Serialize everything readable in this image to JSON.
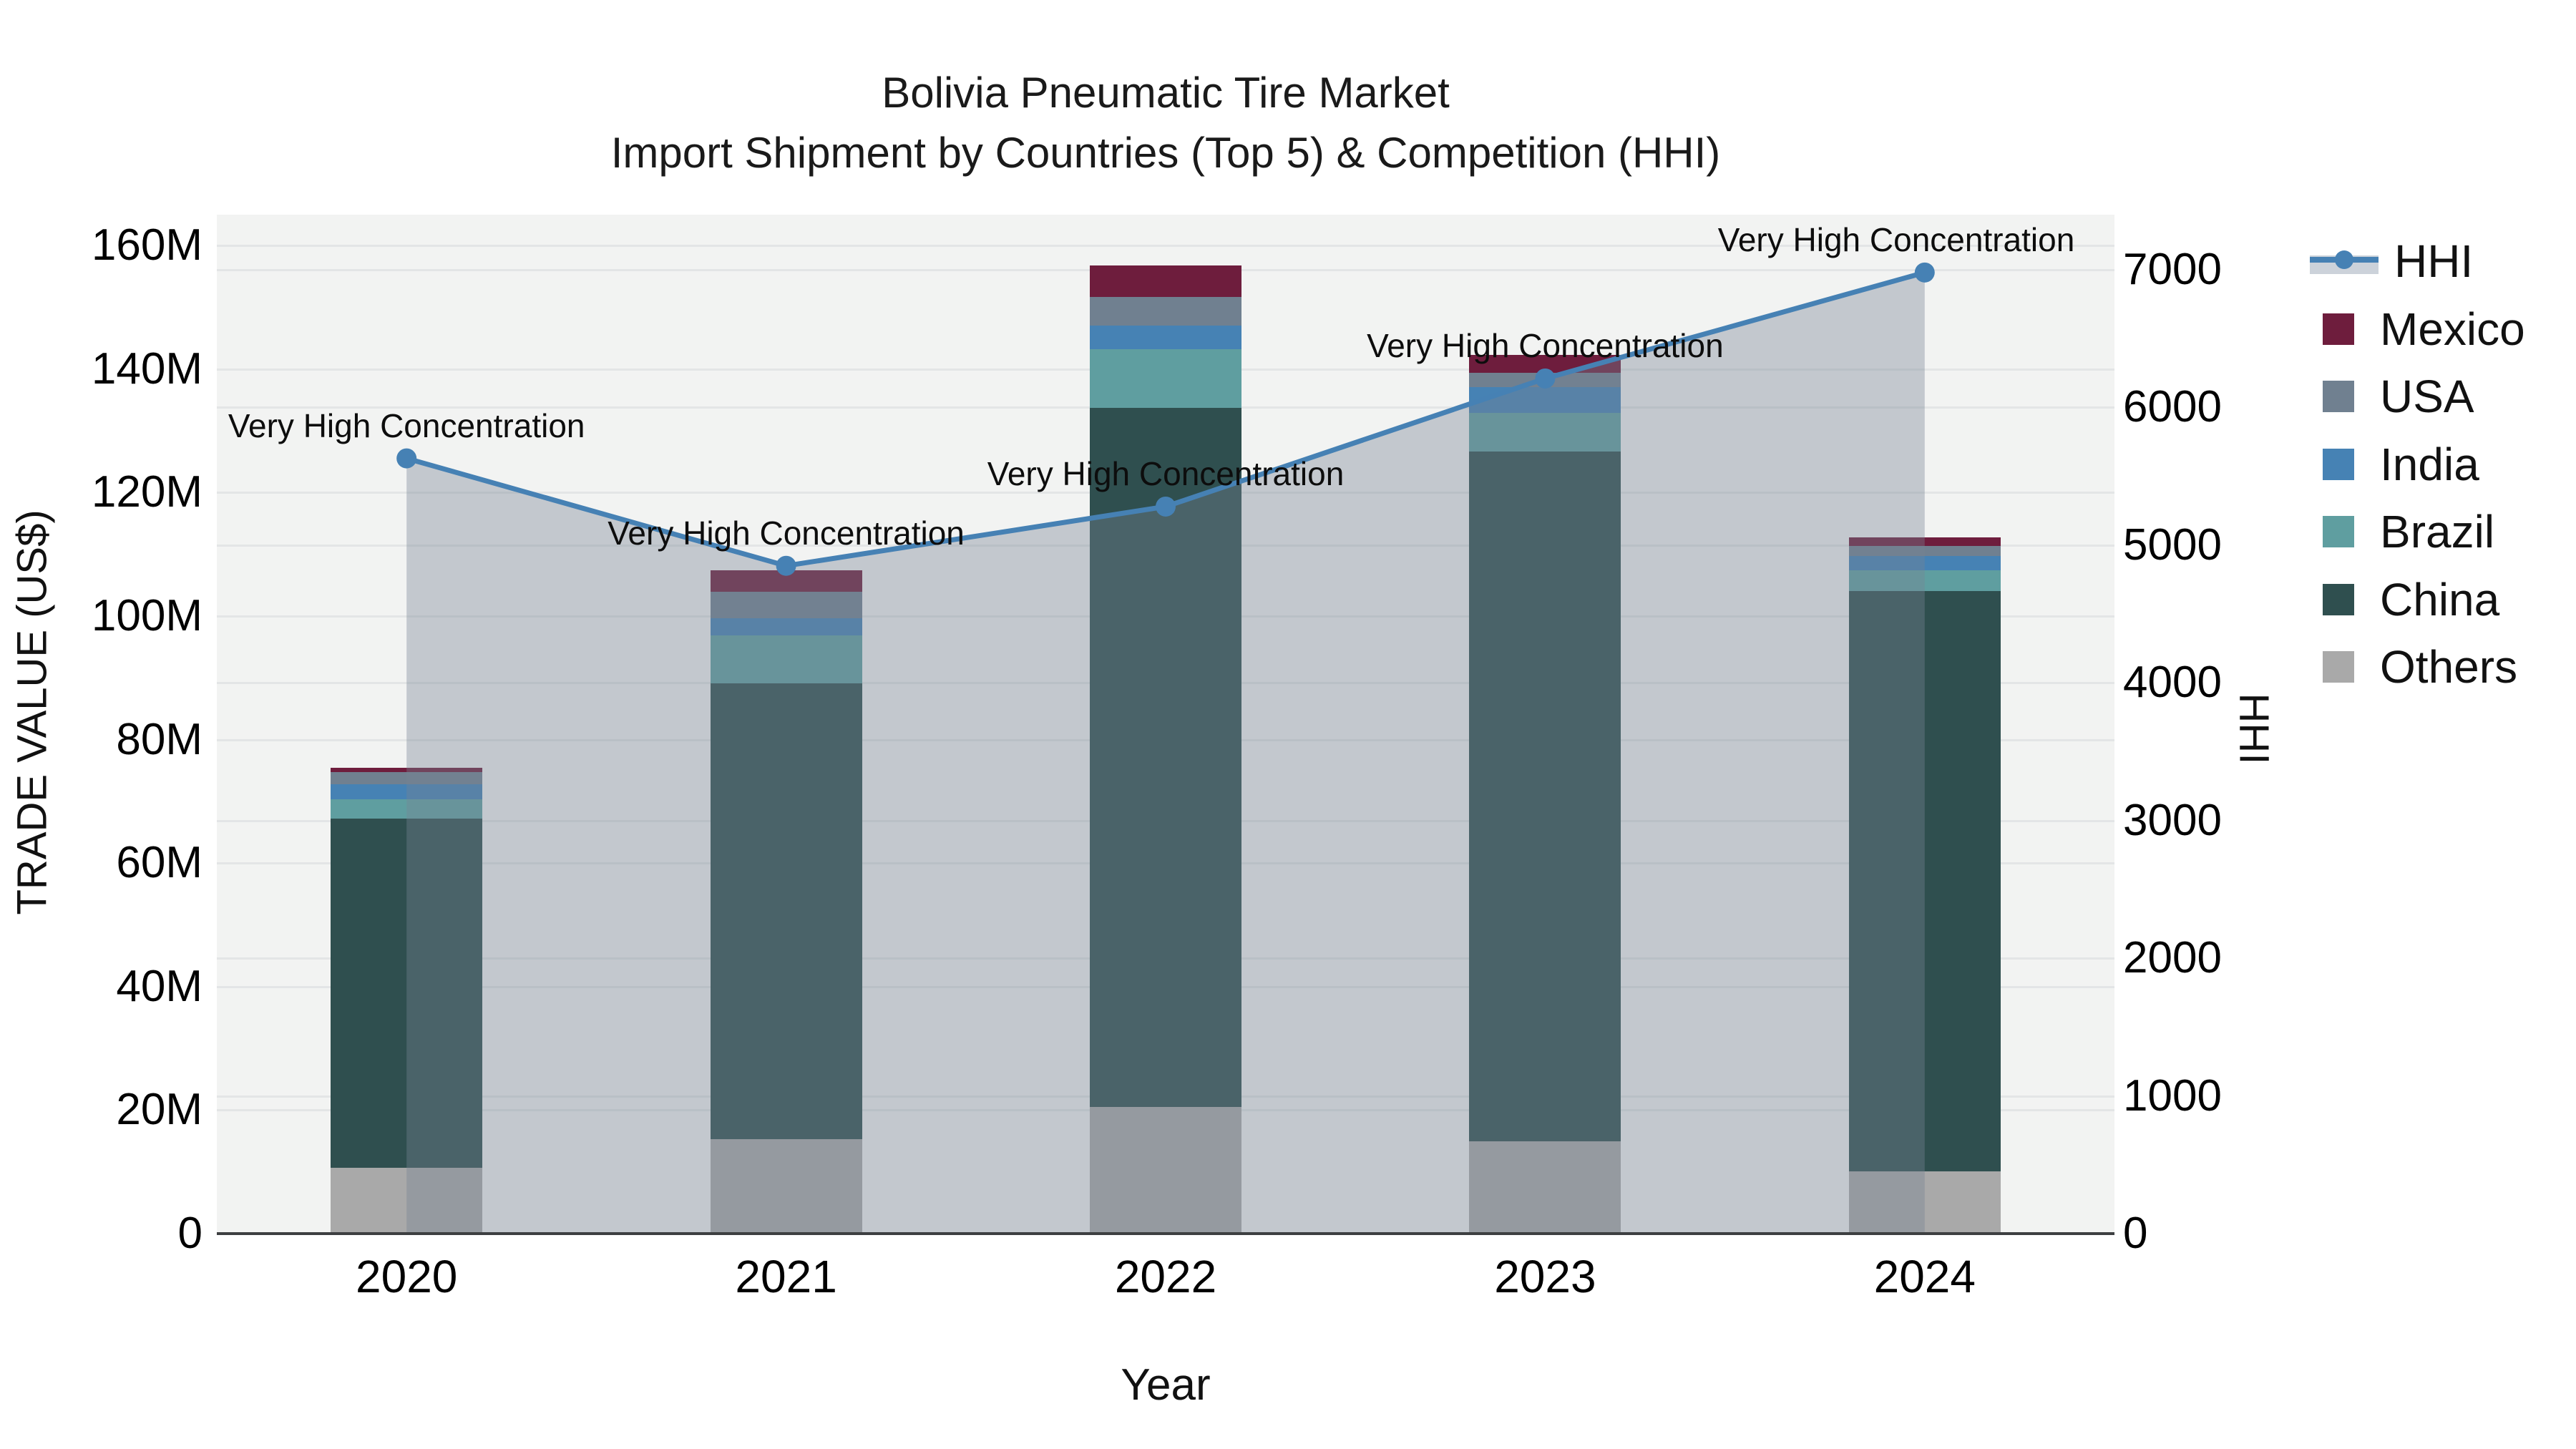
{
  "title": {
    "line1": "Bolivia Pneumatic Tire Market",
    "line2": "Import Shipment by Countries (Top 5) & Competition (HHI)"
  },
  "chart_data": {
    "type": "stacked-bar with line (dual y-axis)",
    "categories": [
      "2020",
      "2021",
      "2022",
      "2023",
      "2024"
    ],
    "bar_unit": "million US$",
    "bar_series": [
      {
        "name": "Others",
        "color": "#a9a9a9",
        "values": [
          10.7,
          15.3,
          20.5,
          15.0,
          10.1
        ]
      },
      {
        "name": "China",
        "color": "#2f4f4f",
        "values": [
          56.5,
          73.8,
          113.2,
          111.7,
          94.0
        ]
      },
      {
        "name": "Brazil",
        "color": "#5f9ea0",
        "values": [
          3.1,
          7.8,
          9.5,
          6.2,
          3.3
        ]
      },
      {
        "name": "India",
        "color": "#4682b4",
        "values": [
          2.5,
          2.8,
          3.8,
          4.2,
          2.3
        ]
      },
      {
        "name": "USA",
        "color": "#708090",
        "values": [
          1.9,
          4.2,
          4.7,
          2.3,
          1.6
        ]
      },
      {
        "name": "Mexico",
        "color": "#6e1d3d",
        "values": [
          0.7,
          3.5,
          5.1,
          2.9,
          1.4
        ]
      }
    ],
    "bar_totals": [
      75.4,
      107.4,
      156.8,
      142.3,
      112.7
    ],
    "line_series": {
      "name": "HHI",
      "axis": "right",
      "color": "#4681b4",
      "fill_color": "rgba(118,132,146,0.38)",
      "values": [
        5630,
        4850,
        5280,
        6210,
        6980
      ]
    },
    "annotations": [
      {
        "year": "2020",
        "text": "Very High Concentration"
      },
      {
        "year": "2021",
        "text": "Very High Concentration"
      },
      {
        "year": "2022",
        "text": "Very High Concentration"
      },
      {
        "year": "2023",
        "text": "Very High Concentration"
      },
      {
        "year": "2024",
        "text": "Very High Concentration"
      }
    ],
    "xlabel": "Year",
    "ylabel_left": "TRADE VALUE (US$)",
    "ylabel_right": "HHI",
    "y_left": {
      "tick_labels": [
        "0",
        "20M",
        "40M",
        "60M",
        "80M",
        "100M",
        "120M",
        "140M",
        "160M"
      ],
      "tick_values": [
        0,
        20,
        40,
        60,
        80,
        100,
        120,
        140,
        160
      ],
      "range": [
        0,
        165
      ],
      "grid": true
    },
    "y_right": {
      "tick_labels": [
        "0",
        "1000",
        "2000",
        "3000",
        "4000",
        "5000",
        "6000",
        "7000"
      ],
      "tick_values": [
        0,
        1000,
        2000,
        3000,
        4000,
        5000,
        6000,
        7000
      ],
      "range": [
        0,
        7400
      ],
      "grid": true
    },
    "legend": {
      "position": "right",
      "entries": [
        "HHI",
        "Mexico",
        "USA",
        "India",
        "Brazil",
        "China",
        "Others"
      ]
    }
  }
}
